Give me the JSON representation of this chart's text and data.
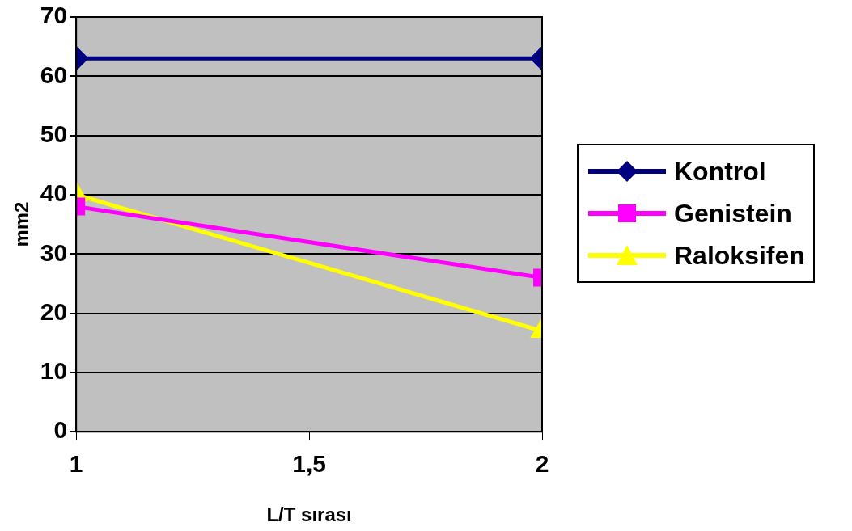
{
  "chart_data": {
    "type": "line",
    "xlabel": "L/T sırası",
    "ylabel": "mm2",
    "x": [
      1,
      2
    ],
    "xlim": [
      1,
      2
    ],
    "xticks": [
      1,
      {
        "value": 1.5,
        "label": "1,5"
      },
      2
    ],
    "ylim": [
      0,
      70
    ],
    "yticks": [
      0,
      10,
      20,
      30,
      40,
      50,
      60,
      70
    ],
    "grid": "y",
    "legend": "right",
    "series": [
      {
        "name": "Kontrol",
        "color": "#000080",
        "marker": "diamond",
        "values": [
          63,
          63
        ]
      },
      {
        "name": "Genistein",
        "color": "#ff00ff",
        "marker": "square",
        "values": [
          38,
          26
        ]
      },
      {
        "name": "Raloksifen",
        "color": "#ffff00",
        "marker": "triangle",
        "values": [
          40,
          17
        ]
      }
    ]
  }
}
